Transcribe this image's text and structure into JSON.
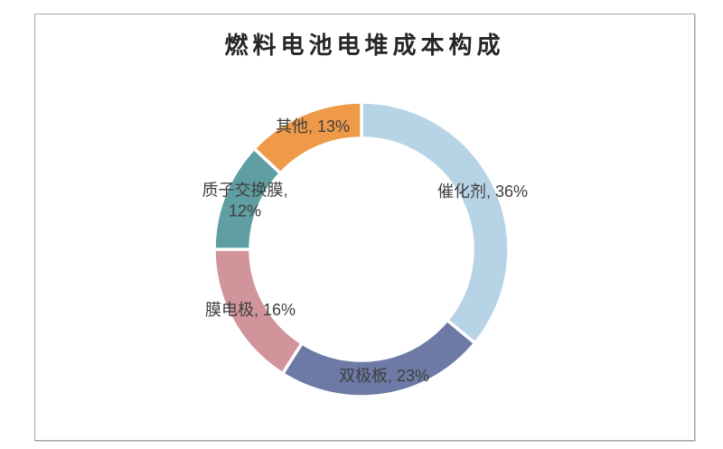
{
  "chart_data": {
    "type": "pie",
    "subtype": "donut",
    "title": "燃料电池电堆成本构成",
    "unit": "%",
    "start_angle_deg": 0,
    "direction": "clockwise",
    "inner_radius_ratio": 0.755,
    "legend": "none",
    "label_style": "category-name-and-percent-outside",
    "segments": [
      {
        "id": "catalyst",
        "label": "催化剂",
        "value": 36,
        "display": "催化剂, 36%",
        "color": "#b7d3e6"
      },
      {
        "id": "bipolar-plate",
        "label": "双极板",
        "value": 23,
        "display": "双极板, 23%",
        "color": "#6c7aa5"
      },
      {
        "id": "membrane-electrode",
        "label": "膜电极",
        "value": 16,
        "display": "膜电极, 16%",
        "color": "#d1949b"
      },
      {
        "id": "proton-exchange-membrane",
        "label": "质子交换膜",
        "value": 12,
        "display": "质子交换膜, 12%",
        "color": "#5f9ea2"
      },
      {
        "id": "other",
        "label": "其他",
        "value": 13,
        "display": "其他, 13%",
        "color": "#ee9a48"
      }
    ],
    "title_color": "#262626",
    "label_color": "#3f3f3f",
    "frame_border_color": "#a6a6a6",
    "gap_color": "#ffffff",
    "background": "#ffffff"
  }
}
